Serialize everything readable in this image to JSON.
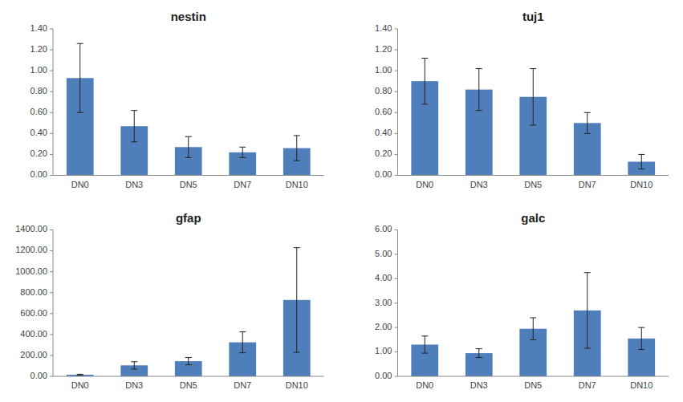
{
  "chart_data": [
    {
      "type": "bar",
      "title": "nestin",
      "categories": [
        "DN0",
        "DN3",
        "DN5",
        "DN7",
        "DN10"
      ],
      "values": [
        0.93,
        0.47,
        0.27,
        0.22,
        0.26
      ],
      "errors": [
        0.33,
        0.15,
        0.1,
        0.05,
        0.12
      ],
      "color": "#4f7fba",
      "ylim": [
        0,
        1.4
      ],
      "yticks": [
        {
          "value": 0,
          "label": "0.00"
        },
        {
          "value": 0.2,
          "label": "0.20"
        },
        {
          "value": 0.4,
          "label": "0.40"
        },
        {
          "value": 0.6,
          "label": "0.60"
        },
        {
          "value": 0.8,
          "label": "0.80"
        },
        {
          "value": 1.0,
          "label": "1.00"
        },
        {
          "value": 1.2,
          "label": "1.20"
        },
        {
          "value": 1.4,
          "label": "1.40"
        }
      ]
    },
    {
      "type": "bar",
      "title": "tuj1",
      "categories": [
        "DN0",
        "DN3",
        "DN5",
        "DN7",
        "DN10"
      ],
      "values": [
        0.9,
        0.82,
        0.75,
        0.5,
        0.13
      ],
      "errors": [
        0.22,
        0.2,
        0.27,
        0.1,
        0.07
      ],
      "color": "#4f7fba",
      "ylim": [
        0,
        1.4
      ],
      "yticks": [
        {
          "value": 0,
          "label": "0.00"
        },
        {
          "value": 0.2,
          "label": "0.20"
        },
        {
          "value": 0.4,
          "label": "0.40"
        },
        {
          "value": 0.6,
          "label": "0.60"
        },
        {
          "value": 0.8,
          "label": "0.80"
        },
        {
          "value": 1.0,
          "label": "1.00"
        },
        {
          "value": 1.2,
          "label": "1.20"
        },
        {
          "value": 1.4,
          "label": "1.40"
        }
      ]
    },
    {
      "type": "bar",
      "title": "gfap",
      "categories": [
        "DN0",
        "DN3",
        "DN5",
        "DN7",
        "DN10"
      ],
      "values": [
        15,
        105,
        145,
        325,
        730
      ],
      "errors": [
        5,
        35,
        35,
        100,
        500
      ],
      "color": "#4f7fba",
      "ylim": [
        0,
        1400
      ],
      "yticks": [
        {
          "value": 0,
          "label": "0.00"
        },
        {
          "value": 200,
          "label": "200.00"
        },
        {
          "value": 400,
          "label": "400.00"
        },
        {
          "value": 600,
          "label": "600.00"
        },
        {
          "value": 800,
          "label": "800.00"
        },
        {
          "value": 1000,
          "label": "1000.00"
        },
        {
          "value": 1200,
          "label": "1200.00"
        },
        {
          "value": 1400,
          "label": "1400.00"
        }
      ]
    },
    {
      "type": "bar",
      "title": "galc",
      "categories": [
        "DN0",
        "DN3",
        "DN5",
        "DN7",
        "DN10"
      ],
      "values": [
        1.3,
        0.95,
        1.95,
        2.7,
        1.55
      ],
      "errors": [
        0.35,
        0.18,
        0.45,
        1.55,
        0.45
      ],
      "color": "#4f7fba",
      "ylim": [
        0,
        6.0
      ],
      "yticks": [
        {
          "value": 0,
          "label": "0.00"
        },
        {
          "value": 1,
          "label": "1.00"
        },
        {
          "value": 2,
          "label": "2.00"
        },
        {
          "value": 3,
          "label": "3.00"
        },
        {
          "value": 4,
          "label": "4.00"
        },
        {
          "value": 5,
          "label": "5.00"
        },
        {
          "value": 6,
          "label": "6.00"
        }
      ]
    }
  ]
}
